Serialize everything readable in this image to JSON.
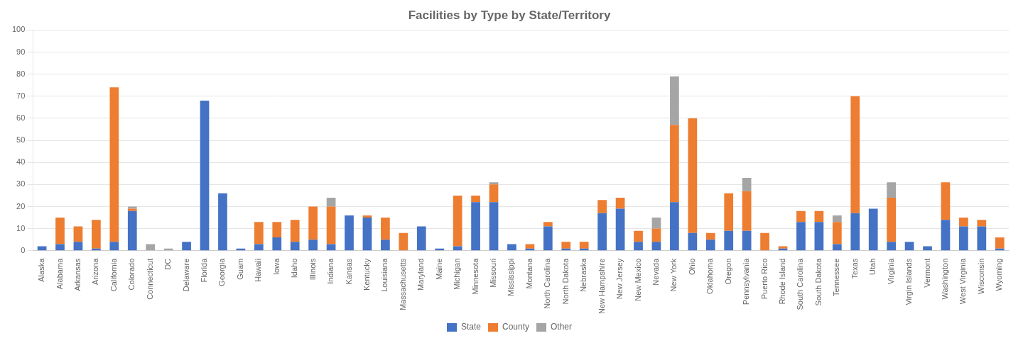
{
  "chart_data": {
    "type": "bar",
    "title": "Facilities by Type by State/Territory",
    "categories": [
      "Alaska",
      "Alabama",
      "Arkansas",
      "Arizona",
      "California",
      "Colorado",
      "Connecticut",
      "DC",
      "Delaware",
      "Florida",
      "Georgia",
      "Guam",
      "Hawaii",
      "Iowa",
      "Idaho",
      "Illinois",
      "Indiana",
      "Kansas",
      "Kentucky",
      "Louisiana",
      "Massachusetts",
      "Maryland",
      "Maine",
      "Michigan",
      "Minnesota",
      "Missouri",
      "Mississippi",
      "Montana",
      "North Carolina",
      "North Dakota",
      "Nebraska",
      "New Hampshire",
      "New Jersey",
      "New Mexico",
      "Nevada",
      "New York",
      "Ohio",
      "Oklahoma",
      "Oregon",
      "Pennsylvania",
      "Puerto Rico",
      "Rhode Island",
      "South Carolina",
      "South Dakota",
      "Tennessee",
      "Texas",
      "Utah",
      "Virginia",
      "Virgin Islands",
      "Vermont",
      "Washington",
      "West Virginia",
      "Wisconsin",
      "Wyoming"
    ],
    "series": [
      {
        "name": "State",
        "color": "#4472C4",
        "values": [
          2,
          3,
          4,
          1,
          4,
          18,
          0,
          0,
          4,
          68,
          26,
          1,
          3,
          6,
          4,
          5,
          3,
          16,
          15,
          5,
          0,
          11,
          1,
          2,
          22,
          22,
          3,
          1,
          11,
          1,
          1,
          17,
          19,
          4,
          4,
          22,
          8,
          5,
          9,
          9,
          0,
          1,
          13,
          13,
          3,
          17,
          19,
          4,
          4,
          2,
          14,
          11,
          11,
          1
        ]
      },
      {
        "name": "County",
        "color": "#ED7D31",
        "values": [
          0,
          12,
          7,
          13,
          70,
          1,
          0,
          0,
          0,
          0,
          0,
          0,
          10,
          7,
          10,
          15,
          17,
          0,
          1,
          10,
          8,
          0,
          0,
          23,
          3,
          8,
          0,
          2,
          2,
          3,
          3,
          6,
          5,
          5,
          6,
          35,
          52,
          3,
          17,
          18,
          8,
          1,
          5,
          5,
          10,
          53,
          0,
          20,
          0,
          0,
          17,
          4,
          3,
          5
        ]
      },
      {
        "name": "Other",
        "color": "#A5A5A5",
        "values": [
          0,
          0,
          0,
          0,
          0,
          1,
          3,
          1,
          0,
          0,
          0,
          0,
          0,
          0,
          0,
          0,
          4,
          0,
          0,
          0,
          0,
          0,
          0,
          0,
          0,
          1,
          0,
          0,
          0,
          0,
          0,
          0,
          0,
          0,
          5,
          22,
          0,
          0,
          0,
          6,
          0,
          0,
          0,
          0,
          3,
          0,
          0,
          7,
          0,
          0,
          0,
          0,
          0,
          0
        ]
      }
    ],
    "stacked": true,
    "ylim": [
      0,
      100
    ],
    "yticks": [
      0,
      10,
      20,
      30,
      40,
      50,
      60,
      70,
      80,
      90,
      100
    ],
    "grid": true,
    "legend": "bottom"
  }
}
